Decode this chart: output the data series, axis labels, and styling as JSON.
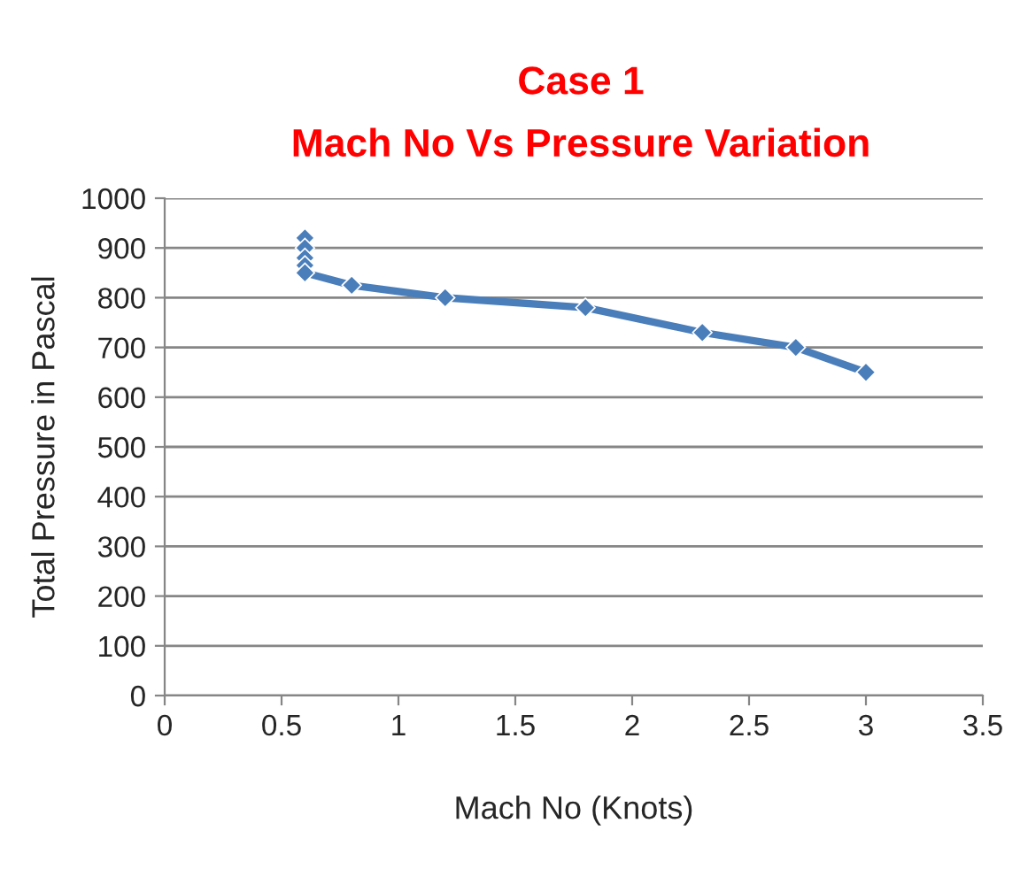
{
  "chart_data": {
    "type": "line",
    "title": "Case 1\nMach No Vs Pressure Variation",
    "xlabel": "Mach No (Knots)",
    "ylabel": "Total Pressure in Pascal",
    "x": [
      0.6,
      0.6,
      0.6,
      0.6,
      0.6,
      0.8,
      1.2,
      1.8,
      2.3,
      2.7,
      3.0
    ],
    "series": [
      {
        "color": "#4a7ebb",
        "values": [
          920,
          900,
          880,
          865,
          850,
          825,
          800,
          780,
          730,
          700,
          650
        ]
      }
    ],
    "xlim": [
      0,
      3.5
    ],
    "xticks": [
      0,
      0.5,
      1,
      1.5,
      2,
      2.5,
      3,
      3.5
    ],
    "ylim": [
      0,
      1000
    ],
    "yticks": [
      0,
      100,
      200,
      300,
      400,
      500,
      600,
      700,
      800,
      900,
      1000
    ],
    "grid": "y",
    "marker": "diamond",
    "line_style": "solid",
    "legend": false
  }
}
